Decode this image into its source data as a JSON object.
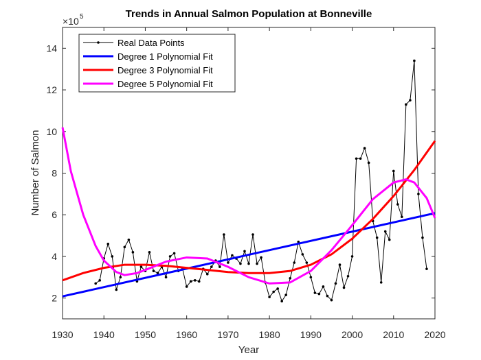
{
  "chart_data": {
    "type": "line",
    "title": "Trends in Annual Salmon Population at Bonneville",
    "x_label": "Year",
    "y_label": "Number of Salmon",
    "y_multiplier_base": "×10",
    "y_multiplier_exponent": "5",
    "xlim": [
      1930,
      2020
    ],
    "xticks": [
      1930,
      1940,
      1950,
      1960,
      1970,
      1980,
      1990,
      2000,
      2010,
      2020
    ],
    "ylim": [
      1,
      15
    ],
    "yticks": [
      2,
      4,
      6,
      8,
      10,
      12,
      14
    ],
    "legend_position": "upper-left",
    "series": [
      {
        "name": "Real Data Points",
        "color": "#000000",
        "marker": true,
        "x": [
          1938,
          1939,
          1940,
          1941,
          1942,
          1943,
          1944,
          1945,
          1946,
          1947,
          1948,
          1949,
          1950,
          1951,
          1952,
          1953,
          1954,
          1955,
          1956,
          1957,
          1958,
          1959,
          1960,
          1961,
          1962,
          1963,
          1964,
          1965,
          1966,
          1967,
          1968,
          1969,
          1970,
          1971,
          1972,
          1973,
          1974,
          1975,
          1976,
          1977,
          1978,
          1979,
          1980,
          1981,
          1982,
          1983,
          1984,
          1985,
          1986,
          1987,
          1988,
          1989,
          1990,
          1991,
          1992,
          1993,
          1994,
          1995,
          1996,
          1997,
          1998,
          1999,
          2000,
          2001,
          2002,
          2003,
          2004,
          2005,
          2006,
          2007,
          2008,
          2009,
          2010,
          2011,
          2012,
          2013,
          2014,
          2015,
          2016,
          2017,
          2018
        ],
        "values": [
          2.7,
          2.85,
          3.9,
          4.6,
          4.0,
          2.4,
          3.0,
          4.45,
          4.8,
          4.2,
          2.8,
          3.5,
          3.3,
          4.2,
          3.3,
          3.2,
          3.5,
          3.0,
          4.0,
          4.15,
          3.3,
          3.4,
          2.55,
          2.8,
          2.85,
          2.8,
          3.4,
          3.15,
          3.5,
          3.8,
          3.5,
          5.05,
          3.7,
          4.05,
          3.9,
          3.65,
          4.25,
          3.65,
          5.05,
          3.65,
          3.95,
          2.75,
          2.05,
          2.3,
          2.45,
          1.85,
          2.15,
          2.95,
          3.7,
          4.7,
          4.1,
          3.7,
          3.0,
          2.25,
          2.2,
          2.55,
          2.1,
          1.9,
          2.7,
          3.6,
          2.5,
          3.05,
          4.0,
          8.7,
          8.7,
          9.2,
          8.5,
          5.7,
          4.9,
          2.75,
          5.2,
          4.8,
          8.1,
          6.5,
          5.9,
          11.3,
          11.5,
          13.4,
          7.0,
          4.9,
          3.4
        ]
      },
      {
        "name": "Degree 1 Polynomial Fit",
        "color": "#0000ff",
        "marker": false,
        "x": [
          1930,
          2020
        ],
        "values": [
          2.08,
          6.08
        ]
      },
      {
        "name": "Degree 3 Polynomial Fit",
        "color": "#ff0000",
        "marker": false,
        "x": [
          1930,
          1935,
          1940,
          1945,
          1950,
          1955,
          1960,
          1965,
          1970,
          1975,
          1980,
          1985,
          1990,
          1995,
          2000,
          2005,
          2010,
          2015,
          2020
        ],
        "values": [
          2.85,
          3.2,
          3.45,
          3.6,
          3.6,
          3.55,
          3.45,
          3.35,
          3.25,
          3.2,
          3.2,
          3.3,
          3.6,
          4.1,
          4.85,
          5.8,
          6.9,
          8.15,
          9.55
        ]
      },
      {
        "name": "Degree 5 Polynomial Fit",
        "color": "#ff00ff",
        "marker": false,
        "x": [
          1930,
          1932,
          1935,
          1938,
          1940,
          1943,
          1945,
          1948,
          1950,
          1955,
          1960,
          1965,
          1970,
          1975,
          1980,
          1985,
          1990,
          1995,
          2000,
          2005,
          2010,
          2013,
          2015,
          2018,
          2020
        ],
        "values": [
          10.2,
          8.1,
          6.0,
          4.5,
          3.8,
          3.25,
          3.1,
          3.2,
          3.35,
          3.75,
          3.95,
          3.9,
          3.5,
          3.0,
          2.7,
          2.75,
          3.3,
          4.3,
          5.5,
          6.75,
          7.55,
          7.7,
          7.55,
          6.8,
          5.85
        ]
      }
    ]
  }
}
